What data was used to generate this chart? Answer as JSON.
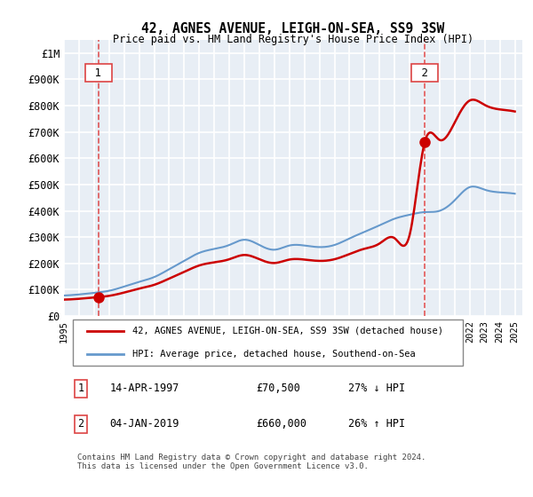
{
  "title1": "42, AGNES AVENUE, LEIGH-ON-SEA, SS9 3SW",
  "title2": "Price paid vs. HM Land Registry's House Price Index (HPI)",
  "ylabel_ticks": [
    "£0",
    "£100K",
    "£200K",
    "£300K",
    "£400K",
    "£500K",
    "£600K",
    "£700K",
    "£800K",
    "£900K",
    "£1M"
  ],
  "ytick_vals": [
    0,
    100000,
    200000,
    300000,
    400000,
    500000,
    600000,
    700000,
    800000,
    900000,
    1000000
  ],
  "ylim": [
    0,
    1050000
  ],
  "xlim_start": 1995.0,
  "xlim_end": 2025.5,
  "sale1_x": 1997.283,
  "sale1_y": 70500,
  "sale2_x": 2019.014,
  "sale2_y": 660000,
  "sale1_label": "1",
  "sale2_label": "2",
  "legend_line1": "42, AGNES AVENUE, LEIGH-ON-SEA, SS9 3SW (detached house)",
  "legend_line2": "HPI: Average price, detached house, Southend-on-Sea",
  "table_row1": "1    14-APR-1997         £70,500         27% ↓ HPI",
  "table_row2": "2    04-JAN-2019         £660,000       26% ↑ HPI",
  "footnote": "Contains HM Land Registry data © Crown copyright and database right 2024.\nThis data is licensed under the Open Government Licence v3.0.",
  "color_red": "#cc0000",
  "color_blue": "#6699cc",
  "color_vline": "#dd4444",
  "bg_color": "#e8eef5",
  "grid_color": "#ffffff",
  "xtick_years": [
    1995,
    1996,
    1997,
    1998,
    1999,
    2000,
    2001,
    2002,
    2003,
    2004,
    2005,
    2006,
    2007,
    2008,
    2009,
    2010,
    2011,
    2012,
    2013,
    2014,
    2015,
    2016,
    2017,
    2018,
    2019,
    2020,
    2021,
    2022,
    2023,
    2024,
    2025
  ]
}
